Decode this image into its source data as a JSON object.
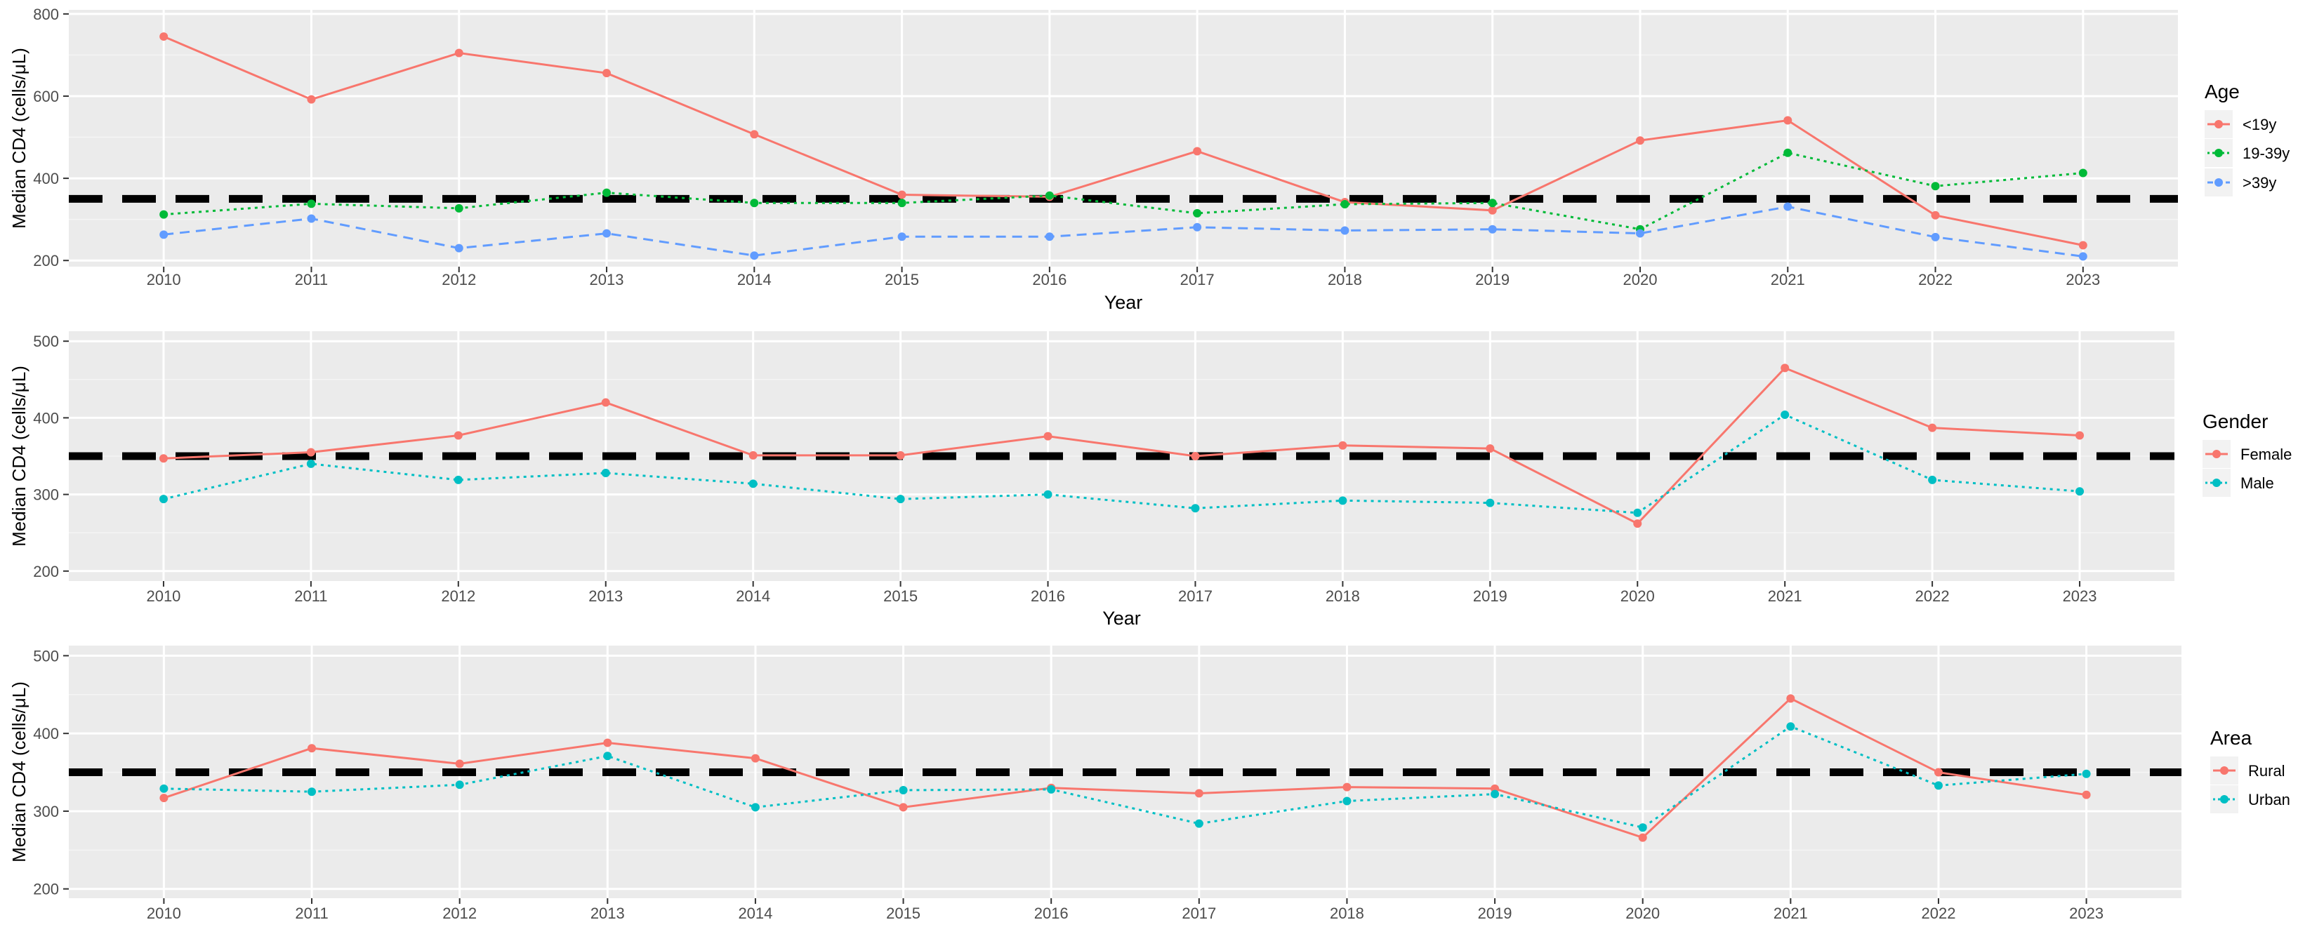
{
  "chart_data": [
    {
      "type": "line",
      "x": [
        2010,
        2011,
        2012,
        2013,
        2014,
        2015,
        2016,
        2017,
        2018,
        2019,
        2020,
        2021,
        2022,
        2023
      ],
      "xlabel": "Year",
      "ylabel": "Median CD4 (cells/μL)",
      "ylim": [
        185,
        810
      ],
      "yticks": [
        200,
        400,
        600,
        800
      ],
      "reference_line": 350,
      "grid": true,
      "legend_title": "Age",
      "legend_position": "right",
      "series": [
        {
          "name": "<19y",
          "color": "#F8766D",
          "linestyle": "solid",
          "values": [
            745,
            592,
            705,
            656,
            507,
            360,
            355,
            466,
            342,
            322,
            492,
            541,
            310,
            237
          ]
        },
        {
          "name": "19-39y",
          "color": "#00BA38",
          "linestyle": "dotted",
          "values": [
            312,
            338,
            327,
            365,
            340,
            340,
            358,
            315,
            337,
            340,
            276,
            462,
            381,
            413
          ]
        },
        {
          "name": ">39y",
          "color": "#619CFF",
          "linestyle": "dashed",
          "values": [
            263,
            302,
            230,
            266,
            212,
            258,
            258,
            281,
            273,
            276,
            266,
            331,
            257,
            210
          ]
        }
      ]
    },
    {
      "type": "line",
      "x": [
        2010,
        2011,
        2012,
        2013,
        2014,
        2015,
        2016,
        2017,
        2018,
        2019,
        2020,
        2021,
        2022,
        2023
      ],
      "xlabel": "Year",
      "ylabel": "Median CD4 (cells/μL)",
      "ylim": [
        187,
        513
      ],
      "yticks": [
        200,
        300,
        400,
        500
      ],
      "reference_line": 350,
      "grid": true,
      "legend_title": "Gender",
      "legend_position": "right",
      "series": [
        {
          "name": "Female",
          "color": "#F8766D",
          "linestyle": "solid",
          "values": [
            347,
            355,
            377,
            420,
            351,
            351,
            376,
            350,
            364,
            360,
            262,
            465,
            387,
            377
          ]
        },
        {
          "name": "Male",
          "color": "#00BFC4",
          "linestyle": "dotted",
          "values": [
            294,
            340,
            319,
            328,
            314,
            294,
            300,
            282,
            292,
            289,
            276,
            404,
            319,
            304
          ]
        }
      ]
    },
    {
      "type": "line",
      "x": [
        2010,
        2011,
        2012,
        2013,
        2014,
        2015,
        2016,
        2017,
        2018,
        2019,
        2020,
        2021,
        2022,
        2023
      ],
      "xlabel": "",
      "ylabel": "Median CD4 (cells/μL)",
      "ylim": [
        188,
        513
      ],
      "yticks": [
        200,
        300,
        400,
        500
      ],
      "reference_line": 350,
      "grid": true,
      "legend_title": "Area",
      "legend_position": "right",
      "series": [
        {
          "name": "Rural",
          "color": "#F8766D",
          "linestyle": "solid",
          "values": [
            317,
            381,
            361,
            388,
            368,
            305,
            330,
            323,
            331,
            329,
            266,
            445,
            350,
            321
          ]
        },
        {
          "name": "Urban",
          "color": "#00BFC4",
          "linestyle": "dotted",
          "values": [
            329,
            325,
            334,
            371,
            305,
            327,
            328,
            284,
            313,
            322,
            279,
            409,
            333,
            348
          ]
        }
      ]
    }
  ]
}
